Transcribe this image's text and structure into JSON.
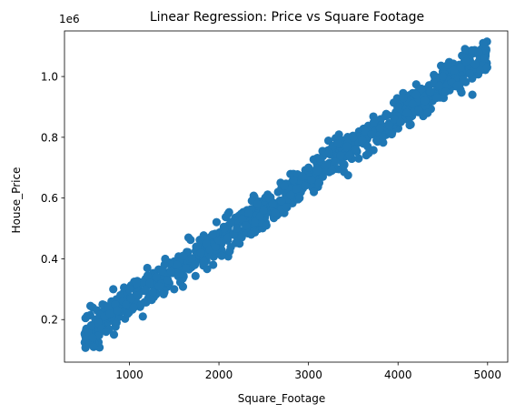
{
  "chart_data": {
    "type": "scatter",
    "title": "Linear Regression: Price vs Square Footage",
    "xlabel": "Square_Footage",
    "ylabel": "House_Price",
    "y_offset_label": "1e6",
    "xlim": [
      275,
      5225
    ],
    "ylim": [
      0.06,
      1.15
    ],
    "x_ticks": [
      1000,
      2000,
      3000,
      4000,
      5000
    ],
    "x_tick_labels": [
      "1000",
      "2000",
      "3000",
      "4000",
      "5000"
    ],
    "y_ticks": [
      0.2,
      0.4,
      0.6,
      0.8,
      1.0
    ],
    "y_tick_labels": [
      "0.2",
      "0.4",
      "0.6",
      "0.8",
      "1.0"
    ],
    "y_unit_multiplier": 1000000,
    "grid": false,
    "legend": "none",
    "marker_color": "#1f77b4",
    "trend": {
      "intercept": 0.05,
      "slope_per_sqft": 0.000205,
      "noise_sd": 0.028
    },
    "series": [
      {
        "points": [
          [
            505,
            0.15
          ],
          [
            510,
            0.205
          ],
          [
            515,
            0.135
          ],
          [
            520,
            0.17
          ],
          [
            540,
            0.16
          ],
          [
            555,
            0.12
          ],
          [
            565,
            0.245
          ],
          [
            575,
            0.18
          ],
          [
            590,
            0.14
          ],
          [
            600,
            0.11
          ],
          [
            620,
            0.2
          ],
          [
            640,
            0.23
          ],
          [
            650,
            0.19
          ],
          [
            670,
            0.215
          ],
          [
            690,
            0.17
          ],
          [
            700,
            0.25
          ],
          [
            720,
            0.21
          ],
          [
            740,
            0.16
          ],
          [
            760,
            0.24
          ],
          [
            780,
            0.22
          ],
          [
            800,
            0.26
          ],
          [
            820,
            0.3
          ],
          [
            840,
            0.25
          ],
          [
            870,
            0.23
          ],
          [
            900,
            0.28
          ],
          [
            930,
            0.26
          ],
          [
            960,
            0.25
          ],
          [
            1000,
            0.3
          ],
          [
            1020,
            0.27
          ],
          [
            1050,
            0.24
          ],
          [
            1080,
            0.32
          ],
          [
            1100,
            0.28
          ],
          [
            1130,
            0.25
          ],
          [
            1150,
            0.21
          ],
          [
            1180,
            0.3
          ],
          [
            1200,
            0.37
          ],
          [
            1230,
            0.32
          ],
          [
            1260,
            0.29
          ],
          [
            1300,
            0.34
          ],
          [
            1330,
            0.31
          ],
          [
            1360,
            0.36
          ],
          [
            1400,
            0.4
          ],
          [
            1430,
            0.33
          ],
          [
            1460,
            0.36
          ],
          [
            1500,
            0.3
          ],
          [
            1530,
            0.38
          ],
          [
            1560,
            0.35
          ],
          [
            1600,
            0.41
          ],
          [
            1630,
            0.37
          ],
          [
            1660,
            0.47
          ],
          [
            1700,
            0.4
          ],
          [
            1730,
            0.38
          ],
          [
            1760,
            0.44
          ],
          [
            1800,
            0.42
          ],
          [
            1830,
            0.39
          ],
          [
            1860,
            0.45
          ],
          [
            1900,
            0.43
          ],
          [
            1930,
            0.48
          ],
          [
            1960,
            0.44
          ],
          [
            2000,
            0.46
          ],
          [
            2030,
            0.41
          ],
          [
            2060,
            0.5
          ],
          [
            2100,
            0.47
          ],
          [
            2130,
            0.52
          ],
          [
            2160,
            0.48
          ],
          [
            2200,
            0.5
          ],
          [
            2230,
            0.45
          ],
          [
            2260,
            0.53
          ],
          [
            2300,
            0.51
          ],
          [
            2330,
            0.55
          ],
          [
            2360,
            0.48
          ],
          [
            2400,
            0.52
          ],
          [
            2430,
            0.58
          ],
          [
            2460,
            0.54
          ],
          [
            2500,
            0.56
          ],
          [
            2530,
            0.51
          ],
          [
            2560,
            0.6
          ],
          [
            2600,
            0.58
          ],
          [
            2630,
            0.55
          ],
          [
            2660,
            0.62
          ],
          [
            2700,
            0.59
          ],
          [
            2730,
            0.64
          ],
          [
            2760,
            0.57
          ],
          [
            2800,
            0.61
          ],
          [
            2830,
            0.66
          ],
          [
            2860,
            0.63
          ],
          [
            2900,
            0.6
          ],
          [
            2930,
            0.67
          ],
          [
            2960,
            0.64
          ],
          [
            3000,
            0.7
          ],
          [
            3030,
            0.66
          ],
          [
            3060,
            0.62
          ],
          [
            3100,
            0.69
          ],
          [
            3130,
            0.73
          ],
          [
            3160,
            0.67
          ],
          [
            3200,
            0.71
          ],
          [
            3230,
            0.75
          ],
          [
            3260,
            0.69
          ],
          [
            3300,
            0.72
          ],
          [
            3330,
            0.78
          ],
          [
            3360,
            0.74
          ],
          [
            3400,
            0.71
          ],
          [
            3430,
            0.77
          ],
          [
            3460,
            0.74
          ],
          [
            3500,
            0.8
          ],
          [
            3530,
            0.76
          ],
          [
            3560,
            0.73
          ],
          [
            3600,
            0.79
          ],
          [
            3630,
            0.82
          ],
          [
            3660,
            0.77
          ],
          [
            3700,
            0.81
          ],
          [
            3730,
            0.85
          ],
          [
            3760,
            0.79
          ],
          [
            3800,
            0.83
          ],
          [
            3830,
            0.8
          ],
          [
            3860,
            0.87
          ],
          [
            3900,
            0.84
          ],
          [
            3930,
            0.81
          ],
          [
            3960,
            0.86
          ],
          [
            4000,
            0.9
          ],
          [
            4030,
            0.85
          ],
          [
            4060,
            0.93
          ],
          [
            4100,
            0.88
          ],
          [
            4130,
            0.84
          ],
          [
            4160,
            0.91
          ],
          [
            4200,
            0.94
          ],
          [
            4230,
            0.89
          ],
          [
            4260,
            0.96
          ],
          [
            4300,
            0.92
          ],
          [
            4330,
            0.88
          ],
          [
            4360,
            0.95
          ],
          [
            4400,
            0.98
          ],
          [
            4430,
            0.93
          ],
          [
            4460,
            0.97
          ],
          [
            4500,
            1.0
          ],
          [
            4530,
            0.95
          ],
          [
            4560,
            1.04
          ],
          [
            4600,
            0.98
          ],
          [
            4630,
            1.02
          ],
          [
            4660,
            0.97
          ],
          [
            4700,
            1.03
          ],
          [
            4730,
            0.99
          ],
          [
            4760,
            1.05
          ],
          [
            4800,
            1.01
          ],
          [
            4830,
            0.94
          ],
          [
            4860,
            1.04
          ],
          [
            4900,
            1.08
          ],
          [
            4920,
            1.02
          ],
          [
            4950,
            1.11
          ],
          [
            4970,
            1.06
          ],
          [
            4985,
            1.09
          ],
          [
            4995,
            1.03
          ]
        ]
      }
    ]
  }
}
